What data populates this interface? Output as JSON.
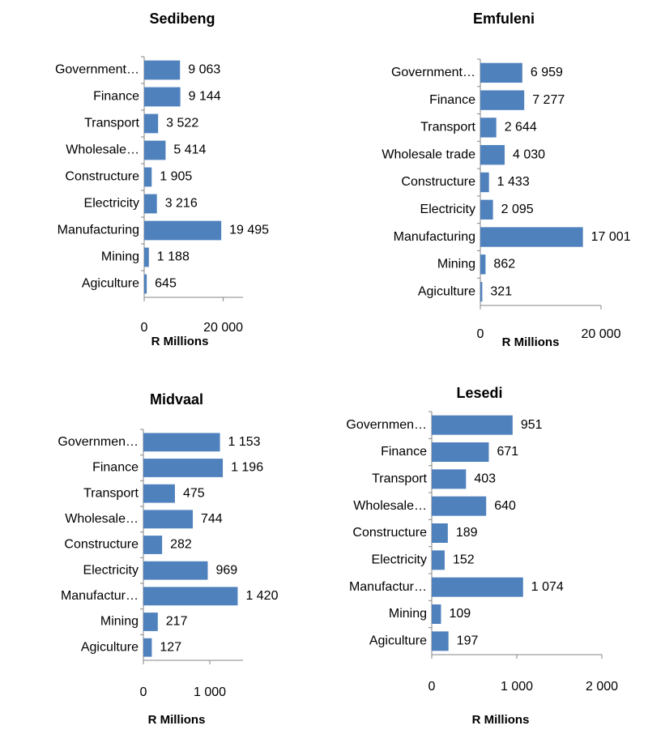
{
  "chart_data": [
    {
      "type": "bar",
      "title": "Sedibeng",
      "categories": [
        "Government…",
        "Finance",
        "Transport",
        "Wholesale…",
        "Constructure",
        "Electricity",
        "Manufacturing",
        "Mining",
        "Agiculture"
      ],
      "values": [
        9063,
        9144,
        3522,
        5414,
        1905,
        3216,
        19495,
        1188,
        645
      ],
      "value_labels": [
        "9 063",
        "9 144",
        "3 522",
        "5 414",
        "1 905",
        "3 216",
        "19 495",
        "1 188",
        "645"
      ],
      "color": "#4f81bd",
      "xlabel": "R Millions",
      "xlim": [
        0,
        25000
      ],
      "xticks": [
        0,
        {
          "value": 20000,
          "label": "20 000"
        }
      ]
    },
    {
      "type": "bar",
      "title": "Emfuleni",
      "categories": [
        "Government…",
        "Finance",
        "Transport",
        "Wholesale trade",
        "Constructure",
        "Electricity",
        "Manufacturing",
        "Mining",
        "Agiculture"
      ],
      "values": [
        6959,
        7277,
        2644,
        4030,
        1433,
        2095,
        17001,
        862,
        321
      ],
      "value_labels": [
        "6 959",
        "7 277",
        "2 644",
        "4 030",
        "1 433",
        "2 095",
        "17 001",
        "862",
        "321"
      ],
      "color": "#4f81bd",
      "xlabel": "R Millions",
      "xlim": [
        0,
        20000
      ],
      "xticks": [
        0,
        {
          "value": 20000,
          "label": "20 000"
        }
      ]
    },
    {
      "type": "bar",
      "title": "Midvaal",
      "categories": [
        "Governmen…",
        "Finance",
        "Transport",
        "Wholesale…",
        "Constructure",
        "Electricity",
        "Manufactur…",
        "Mining",
        "Agiculture"
      ],
      "values": [
        1153,
        1196,
        475,
        744,
        282,
        969,
        1420,
        217,
        127
      ],
      "value_labels": [
        "1 153",
        "1 196",
        "475",
        "744",
        "282",
        "969",
        "1 420",
        "217",
        "127"
      ],
      "color": "#4f81bd",
      "xlabel": "R Millions",
      "xlim": [
        0,
        1500
      ],
      "xticks": [
        0,
        {
          "value": 1000,
          "label": "1 000"
        }
      ]
    },
    {
      "type": "bar",
      "title": "Lesedi",
      "categories": [
        "Governmen…",
        "Finance",
        "Transport",
        "Wholesale…",
        "Constructure",
        "Electricity",
        "Manufactur…",
        "Mining",
        "Agiculture"
      ],
      "values": [
        951,
        671,
        403,
        640,
        189,
        152,
        1074,
        109,
        197
      ],
      "value_labels": [
        "951",
        "671",
        "403",
        "640",
        "189",
        "152",
        "1 074",
        "109",
        "197"
      ],
      "color": "#4f81bd",
      "xlabel": "R Millions",
      "xlim": [
        0,
        2000
      ],
      "xticks": [
        0,
        {
          "value": 1000,
          "label": "1 000"
        },
        {
          "value": 2000,
          "label": "2 000"
        }
      ]
    }
  ]
}
